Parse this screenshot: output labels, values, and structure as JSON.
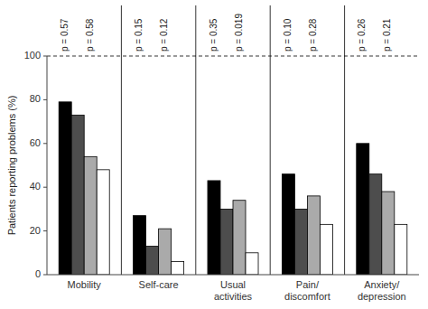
{
  "chart_data": {
    "type": "bar",
    "ylabel": "Patients reporting problems (%)",
    "categories": [
      "Mobility",
      "Self-care",
      "Usual\nactivities",
      "Pain/\ndiscomfort",
      "Anxiety/\ndepression"
    ],
    "series": [
      {
        "color": "#000000",
        "values": [
          79,
          27,
          43,
          46,
          60
        ],
        "annotations": [
          "p = 0.57",
          "p = 0.15",
          "p = 0.35",
          "p = 0.10",
          "p = 0.26"
        ]
      },
      {
        "color": "#4d4d4d",
        "values": [
          73,
          13,
          30,
          30,
          46
        ]
      },
      {
        "color": "#aaaaaa",
        "values": [
          54,
          21,
          34,
          36,
          38
        ],
        "annotations": [
          "p = 0.58",
          "p = 0.12",
          "p = 0.019",
          "p = 0.28",
          "p = 0.21"
        ]
      },
      {
        "color": "#ffffff",
        "values": [
          48,
          6,
          10,
          23,
          23
        ]
      }
    ],
    "ylim": [
      0,
      100
    ],
    "yticks": [
      0,
      20,
      40,
      60,
      80,
      100
    ]
  }
}
